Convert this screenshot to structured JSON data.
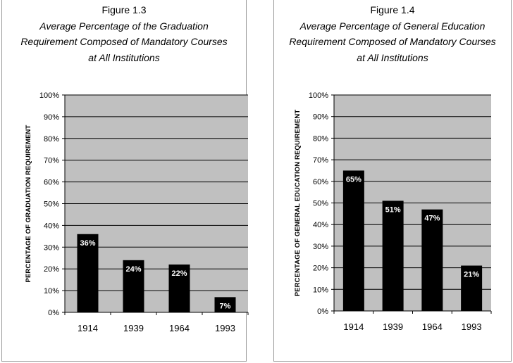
{
  "charts": [
    {
      "figure_label": "Figure 1.3",
      "subtitle_lines": [
        "Average Percentage of the Graduation",
        "Requirement Composed of Mandatory Courses",
        "at All Institutions"
      ]
    },
    {
      "figure_label": "Figure 1.4",
      "subtitle_lines": [
        "Average Percentage of General Education",
        "Requirement Composed of Mandatory Courses",
        "at All Institutions"
      ]
    }
  ],
  "chart_data": [
    {
      "type": "bar",
      "title": "Figure 1.3",
      "subtitle": "Average Percentage of the Graduation Requirement Composed of Mandatory Courses at All Institutions",
      "categories": [
        "1914",
        "1939",
        "1964",
        "1993"
      ],
      "values": [
        36,
        24,
        22,
        7
      ],
      "value_labels": [
        "36%",
        "24%",
        "22%",
        "7%"
      ],
      "xlabel": "",
      "ylabel": "PERCENTAGE OF GRADUATION REQUIREMENT",
      "ylim": [
        0,
        100
      ],
      "yticks": [
        "0%",
        "10%",
        "20%",
        "30%",
        "40%",
        "50%",
        "60%",
        "70%",
        "80%",
        "90%",
        "100%"
      ],
      "grid": true,
      "plot_background": "#c0c0c0",
      "bar_color": "#000000",
      "label_color": "#ffffff"
    },
    {
      "type": "bar",
      "title": "Figure 1.4",
      "subtitle": "Average Percentage of General Education Requirement Composed of Mandatory Courses at All Institutions",
      "categories": [
        "1914",
        "1939",
        "1964",
        "1993"
      ],
      "values": [
        65,
        51,
        47,
        21
      ],
      "value_labels": [
        "65%",
        "51%",
        "47%",
        "21%"
      ],
      "xlabel": "",
      "ylabel": "PERCENTAGE OF GENERAL EDUCATION REQUIREMENT",
      "ylim": [
        0,
        100
      ],
      "yticks": [
        "0%",
        "10%",
        "20%",
        "30%",
        "40%",
        "50%",
        "60%",
        "70%",
        "80%",
        "90%",
        "100%"
      ],
      "grid": true,
      "plot_background": "#c0c0c0",
      "bar_color": "#000000",
      "label_color": "#ffffff"
    }
  ]
}
